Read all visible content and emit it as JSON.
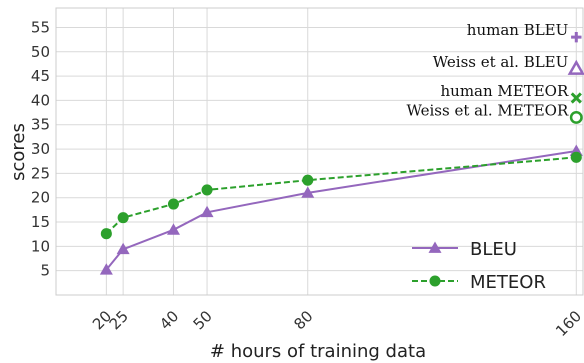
{
  "chart_data": {
    "type": "line",
    "title": "",
    "xlabel": "# hours of training data",
    "ylabel": "scores",
    "x": [
      20,
      25,
      40,
      50,
      80,
      160
    ],
    "xlim": [
      5,
      162
    ],
    "ylim": [
      0,
      59
    ],
    "yticks": [
      5,
      10,
      15,
      20,
      25,
      30,
      35,
      40,
      45,
      50,
      55
    ],
    "grid": true,
    "series": [
      {
        "name": "BLEU",
        "values": [
          5.2,
          9.4,
          13.4,
          17.0,
          21.0,
          29.6
        ],
        "color": "#9467bd",
        "marker": "triangle",
        "dash": "solid"
      },
      {
        "name": "METEOR",
        "values": [
          12.6,
          15.9,
          18.7,
          21.6,
          23.6,
          28.3
        ],
        "color": "#2ca02c",
        "marker": "circle",
        "dash": "dashed"
      }
    ],
    "annotations": [
      {
        "text": "human BLEU",
        "x": 160,
        "y": 53,
        "marker": "plus",
        "color": "#9467bd"
      },
      {
        "text": "Weiss et al. BLEU",
        "x": 160,
        "y": 46.5,
        "marker": "triangle-open",
        "color": "#9467bd"
      },
      {
        "text": "human METEOR",
        "x": 160,
        "y": 40.5,
        "marker": "x",
        "color": "#2ca02c"
      },
      {
        "text": "Weiss et al. METEOR",
        "x": 160,
        "y": 36.5,
        "marker": "circle-open",
        "color": "#2ca02c"
      }
    ],
    "legend": {
      "placement": "bottom-right",
      "entries": [
        "BLEU",
        "METEOR"
      ]
    }
  }
}
